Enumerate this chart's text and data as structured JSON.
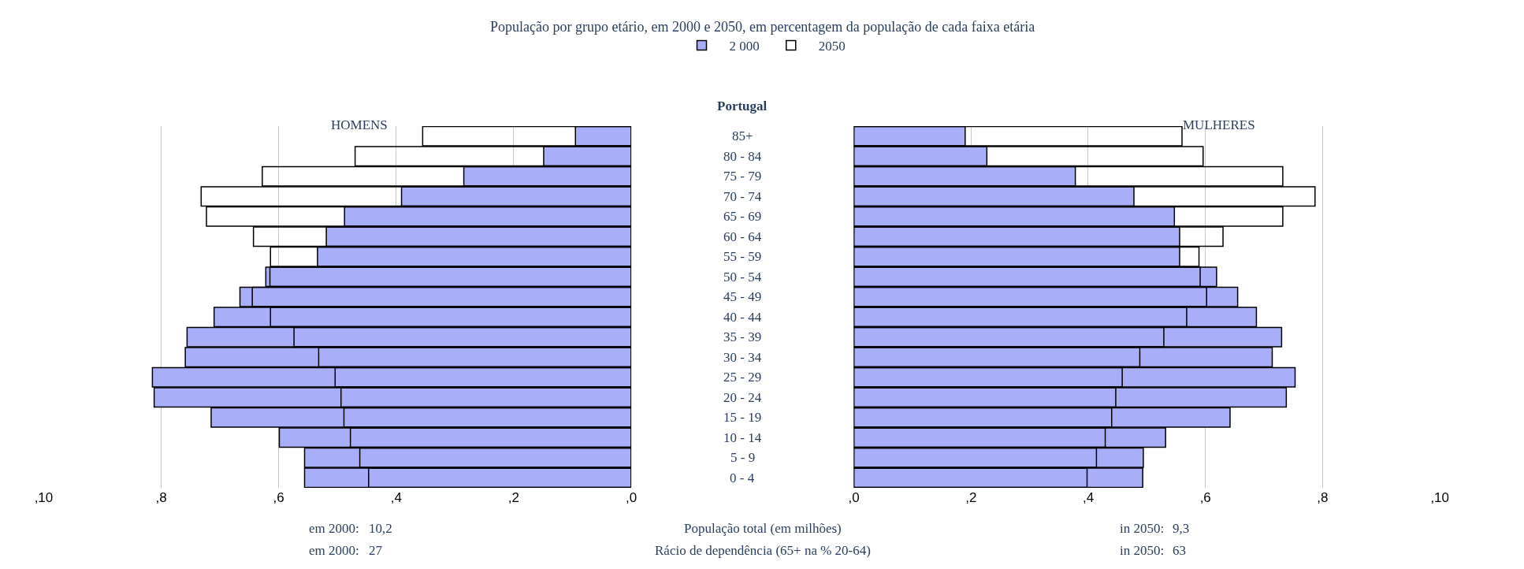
{
  "chart_data": [
    {
      "type": "bar",
      "orientation": "horizontal",
      "title": "População por grupo etário, em 2000 e 2050, em percentagem da população de cada faixa etária",
      "ylabel": "Portugal",
      "categories": [
        "85+",
        "80 - 84",
        "75 - 79",
        "70 - 74",
        "65 - 69",
        "60 - 64",
        "55 - 59",
        "50 - 54",
        "45 - 49",
        "40 - 44",
        "35 - 39",
        "30 - 34",
        "25 - 29",
        "20 - 24",
        "15 - 19",
        "10 - 14",
        "5 - 9",
        "0 - 4"
      ],
      "series": [
        {
          "name": "2 000",
          "color": "#a9aef8",
          "values": [
            0.95,
            1.49,
            2.85,
            3.91,
            4.88,
            5.19,
            5.34,
            6.22,
            6.66,
            7.1,
            7.56,
            7.59,
            8.15,
            8.12,
            7.15,
            5.99,
            5.56,
            5.56
          ]
        },
        {
          "name": "2050",
          "color": "#000000",
          "values": [
            3.55,
            4.7,
            6.28,
            7.32,
            7.23,
            6.43,
            6.14,
            6.15,
            6.45,
            6.14,
            5.74,
            5.32,
            5.04,
            4.94,
            4.89,
            4.78,
            4.62,
            4.47
          ]
        }
      ],
      "xlim": [
        10,
        0
      ],
      "xticks": [
        {
          "value": 10,
          "label": ",10"
        },
        {
          "value": 8,
          "label": ",8"
        },
        {
          "value": 6,
          "label": ",6"
        },
        {
          "value": 4,
          "label": ",4"
        },
        {
          "value": 2,
          "label": ",2"
        },
        {
          "value": 0,
          "label": ",0"
        }
      ],
      "grid": "x",
      "legend": "top",
      "tick_labels": "x",
      "annotations": [
        "HOMENS",
        "em 2000:",
        "10,2",
        "em 2000:",
        "27"
      ]
    },
    {
      "type": "bar",
      "orientation": "horizontal",
      "categories": [
        null,
        null,
        null,
        null,
        null,
        null,
        null,
        null,
        null,
        null,
        null,
        null,
        null,
        null,
        null,
        null,
        null,
        null
      ],
      "series": [
        {
          "color": "#a9aef8",
          "values": [
            1.9,
            2.27,
            3.78,
            4.78,
            5.47,
            5.56,
            5.56,
            6.19,
            6.55,
            6.87,
            7.3,
            7.14,
            7.53,
            7.38,
            6.42,
            5.32,
            4.94,
            4.93
          ]
        },
        {
          "color": "#000000",
          "values": [
            5.6,
            5.96,
            7.32,
            7.87,
            7.32,
            6.3,
            5.89,
            5.91,
            6.02,
            5.68,
            5.29,
            4.88,
            4.58,
            4.47,
            4.4,
            4.29,
            4.14,
            3.98
          ]
        }
      ],
      "xlim": [
        0,
        10
      ],
      "xticks": [
        {
          "value": 0,
          "label": ",0"
        },
        {
          "value": 2,
          "label": ",2"
        },
        {
          "value": 4,
          "label": ",4"
        },
        {
          "value": 6,
          "label": ",6"
        },
        {
          "value": 8,
          "label": ",8"
        },
        {
          "value": 10,
          "label": ",10"
        }
      ],
      "grid": "x",
      "tick_labels": "x",
      "annotations": [
        "MULHERES",
        "População total (em milhões)",
        "in 2050:",
        "9,3",
        "Rácio de dependência (65+ na % 20-64)",
        "in 2050:",
        "63"
      ]
    }
  ]
}
